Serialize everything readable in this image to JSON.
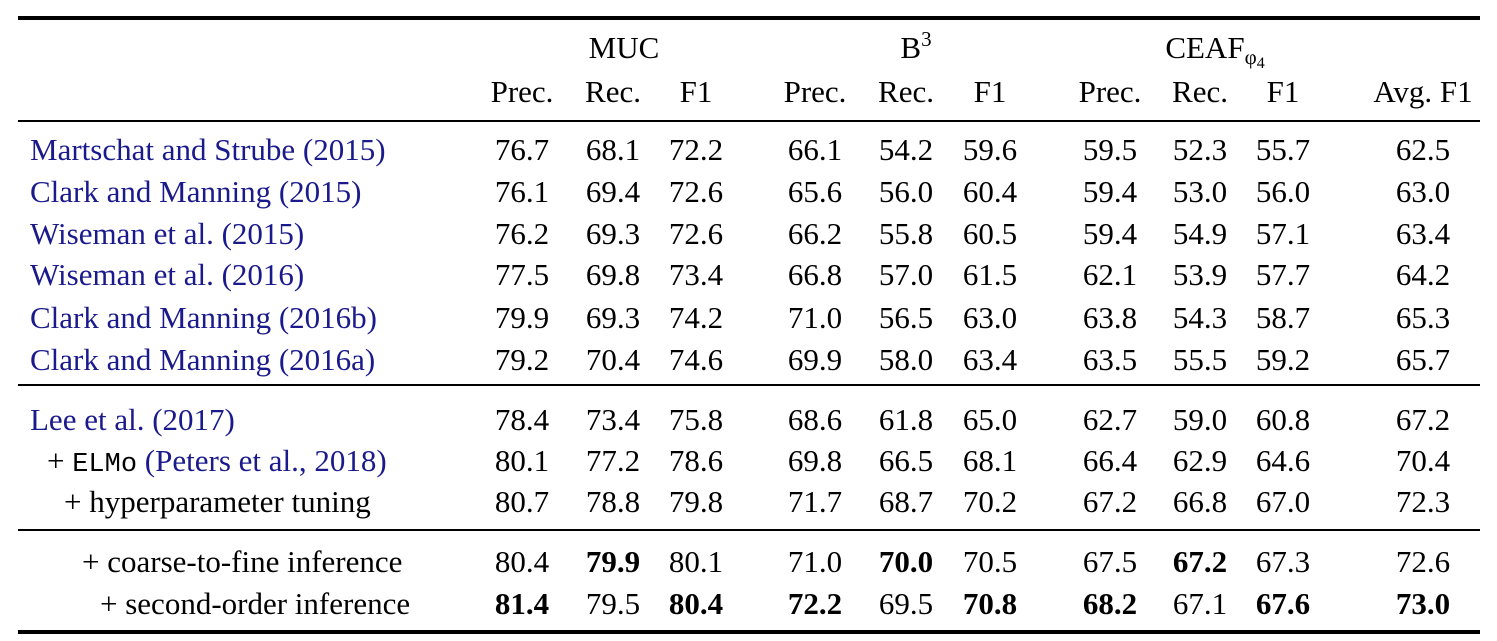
{
  "table": {
    "groups": [
      {
        "text": "MUC"
      },
      {
        "text": "B",
        "sup": "3"
      },
      {
        "text": "CEAF",
        "sub": "φ",
        "subsub": "4"
      }
    ],
    "columns": [
      "Prec.",
      "Rec.",
      "F1",
      "Prec.",
      "Rec.",
      "F1",
      "Prec.",
      "Rec.",
      "F1",
      "Avg. F1"
    ],
    "row_groups": [
      [
        {
          "label": [
            {
              "text": "Martschat and Strube (2015)",
              "font": "cite"
            }
          ],
          "values": [
            "76.7",
            "68.1",
            "72.2",
            "66.1",
            "54.2",
            "59.6",
            "59.5",
            "52.3",
            "55.7",
            "62.5"
          ],
          "bold": []
        },
        {
          "label": [
            {
              "text": "Clark and Manning (2015)",
              "font": "cite"
            }
          ],
          "values": [
            "76.1",
            "69.4",
            "72.6",
            "65.6",
            "56.0",
            "60.4",
            "59.4",
            "53.0",
            "56.0",
            "63.0"
          ],
          "bold": []
        },
        {
          "label": [
            {
              "text": "Wiseman et al. (2015)",
              "font": "cite"
            }
          ],
          "values": [
            "76.2",
            "69.3",
            "72.6",
            "66.2",
            "55.8",
            "60.5",
            "59.4",
            "54.9",
            "57.1",
            "63.4"
          ],
          "bold": []
        },
        {
          "label": [
            {
              "text": "Wiseman et al. (2016)",
              "font": "cite"
            }
          ],
          "values": [
            "77.5",
            "69.8",
            "73.4",
            "66.8",
            "57.0",
            "61.5",
            "62.1",
            "53.9",
            "57.7",
            "64.2"
          ],
          "bold": []
        },
        {
          "label": [
            {
              "text": "Clark and Manning (2016b)",
              "font": "cite"
            }
          ],
          "values": [
            "79.9",
            "69.3",
            "74.2",
            "71.0",
            "56.5",
            "63.0",
            "63.8",
            "54.3",
            "58.7",
            "65.3"
          ],
          "bold": []
        },
        {
          "label": [
            {
              "text": "Clark and Manning (2016a)",
              "font": "cite"
            }
          ],
          "values": [
            "79.2",
            "70.4",
            "74.6",
            "69.9",
            "58.0",
            "63.4",
            "63.5",
            "55.5",
            "59.2",
            "65.7"
          ],
          "bold": []
        }
      ],
      [
        {
          "label": [
            {
              "text": "Lee et al. (2017)",
              "font": "cite"
            }
          ],
          "values": [
            "78.4",
            "73.4",
            "75.8",
            "68.6",
            "61.8",
            "65.0",
            "62.7",
            "59.0",
            "60.8",
            "67.2"
          ],
          "bold": []
        },
        {
          "label": [
            {
              "text": "+ ",
              "font": "plain"
            },
            {
              "text": "ELMo",
              "font": "mono"
            },
            {
              "text": " (Peters et al., 2018)",
              "font": "cite"
            }
          ],
          "values": [
            "80.1",
            "77.2",
            "78.6",
            "69.8",
            "66.5",
            "68.1",
            "66.4",
            "62.9",
            "64.6",
            "70.4"
          ],
          "bold": []
        },
        {
          "label": [
            {
              "text": "+ hyperparameter tuning",
              "font": "plain"
            }
          ],
          "values": [
            "80.7",
            "78.8",
            "79.8",
            "71.7",
            "68.7",
            "70.2",
            "67.2",
            "66.8",
            "67.0",
            "72.3"
          ],
          "bold": []
        }
      ],
      [
        {
          "label": [
            {
              "text": "+ coarse-to-fine inference",
              "font": "plain"
            }
          ],
          "values": [
            "80.4",
            "79.9",
            "80.1",
            "71.0",
            "70.0",
            "70.5",
            "67.5",
            "67.2",
            "67.3",
            "72.6"
          ],
          "bold": [
            1,
            4,
            7
          ]
        },
        {
          "label": [
            {
              "text": "+ second-order inference",
              "font": "plain"
            }
          ],
          "values": [
            "81.4",
            "79.5",
            "80.4",
            "72.2",
            "69.5",
            "70.8",
            "68.2",
            "67.1",
            "67.6",
            "73.0"
          ],
          "bold": [
            0,
            2,
            3,
            5,
            6,
            8,
            9
          ]
        }
      ]
    ]
  }
}
